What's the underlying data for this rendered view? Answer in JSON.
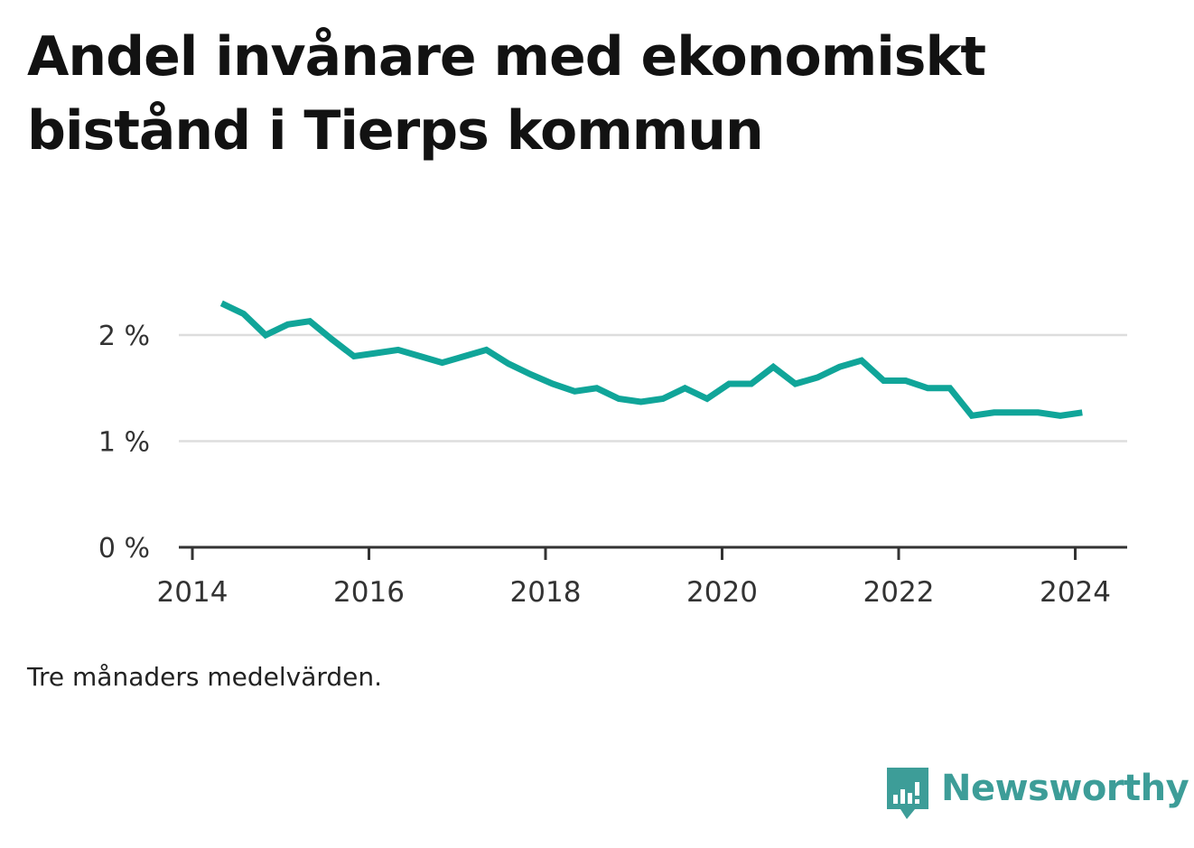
{
  "title": "Andel invånare med ekonomiskt bistånd i Tierps kommun",
  "note": "Tre månaders medelvärden.",
  "brand": {
    "name": "Newsworthy",
    "icon": "newsworthy-logo-icon",
    "color": "#3d9d98"
  },
  "chart_data": {
    "type": "line",
    "title": "Andel invånare med ekonomiskt bistånd i Tierps kommun",
    "xlabel": "",
    "ylabel": "",
    "grid": true,
    "color": "#10a599",
    "xlim": [
      2014,
      2024.6
    ],
    "ylim": [
      0,
      2.5
    ],
    "x_ticks": [
      2014,
      2016,
      2018,
      2020,
      2022,
      2024
    ],
    "x_tick_labels": [
      "2014",
      "2016",
      "2018",
      "2020",
      "2022",
      "2024"
    ],
    "y_ticks": [
      0,
      1,
      2
    ],
    "y_tick_labels": [
      "0 %",
      "1 %",
      "2 %"
    ],
    "series": [
      {
        "x": [
          2014.33,
          2014.58,
          2014.83,
          2015.08,
          2015.33,
          2015.58,
          2015.83,
          2016.08,
          2016.33,
          2016.58,
          2016.83,
          2017.08,
          2017.33,
          2017.58,
          2017.83,
          2018.08,
          2018.33,
          2018.58,
          2018.83,
          2019.08,
          2019.33,
          2019.58,
          2019.83,
          2020.08,
          2020.33,
          2020.58,
          2020.83,
          2021.08,
          2021.33,
          2021.58,
          2021.83,
          2022.08,
          2022.33,
          2022.58,
          2022.83,
          2023.08,
          2023.33,
          2023.58,
          2023.83,
          2024.08
        ],
        "values": [
          2.3,
          2.2,
          2.0,
          2.1,
          2.13,
          1.96,
          1.8,
          1.83,
          1.86,
          1.8,
          1.74,
          1.8,
          1.86,
          1.73,
          1.63,
          1.54,
          1.47,
          1.5,
          1.4,
          1.37,
          1.4,
          1.5,
          1.4,
          1.54,
          1.54,
          1.7,
          1.54,
          1.6,
          1.7,
          1.76,
          1.57,
          1.57,
          1.5,
          1.5,
          1.24,
          1.27,
          1.27,
          1.27,
          1.24,
          1.27
        ]
      }
    ]
  }
}
